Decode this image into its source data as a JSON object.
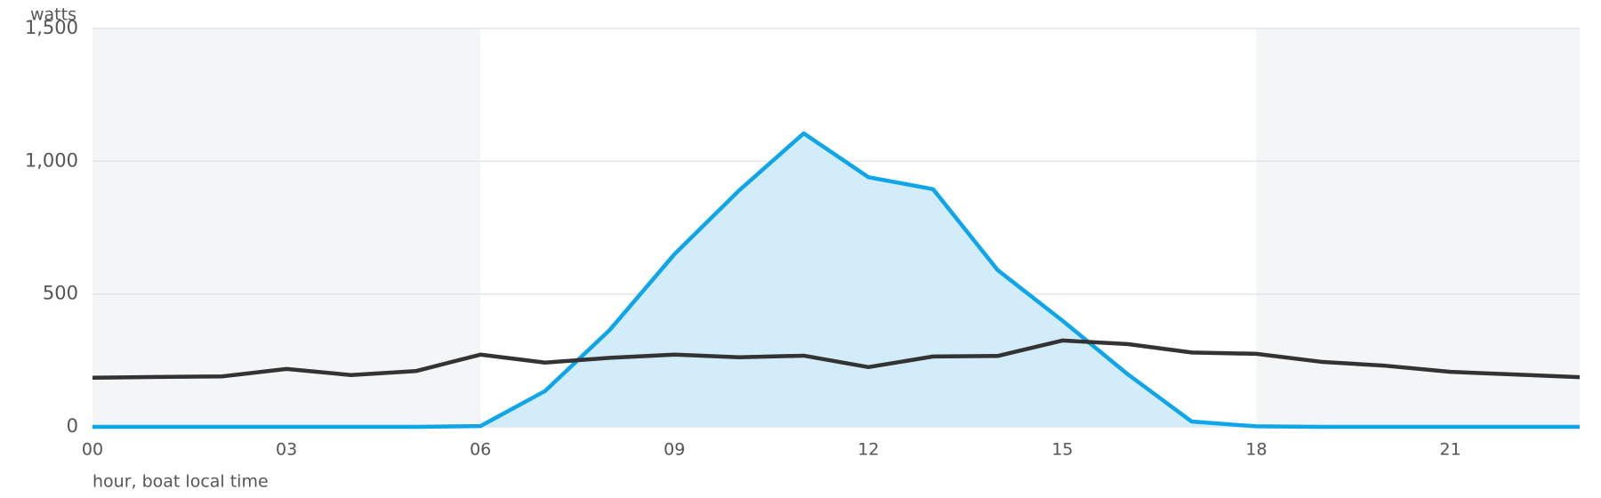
{
  "chart_data": {
    "type": "line",
    "ylabel": "watts",
    "xlabel": "hour, boat local time",
    "x": [
      0,
      1,
      2,
      3,
      4,
      5,
      6,
      7,
      8,
      9,
      10,
      11,
      12,
      13,
      14,
      15,
      16,
      17,
      18,
      19,
      20,
      21,
      22,
      23
    ],
    "series": [
      {
        "color": "#0ea5e9",
        "fill": "#d2edf9",
        "area": true,
        "values": [
          0,
          0,
          0,
          0,
          0,
          0,
          3,
          135,
          365,
          650,
          890,
          1105,
          940,
          895,
          590,
          400,
          200,
          20,
          2,
          0,
          0,
          0,
          0,
          0
        ]
      },
      {
        "color": "#333333",
        "area": false,
        "values": [
          185,
          188,
          190,
          218,
          195,
          210,
          272,
          242,
          260,
          272,
          262,
          268,
          225,
          265,
          267,
          325,
          312,
          280,
          275,
          245,
          230,
          207,
          197,
          187
        ]
      }
    ],
    "shaded_ranges": [
      [
        0,
        6
      ],
      [
        18,
        23
      ]
    ],
    "shade_color": "#f4f5f7",
    "xlim": [
      0,
      23
    ],
    "xticks": [
      {
        "value": 0,
        "label": "00"
      },
      {
        "value": 3,
        "label": "03"
      },
      {
        "value": 6,
        "label": "06"
      },
      {
        "value": 9,
        "label": "09"
      },
      {
        "value": 12,
        "label": "12"
      },
      {
        "value": 15,
        "label": "15"
      },
      {
        "value": 18,
        "label": "18"
      },
      {
        "value": 21,
        "label": "21"
      }
    ],
    "ylim": [
      0,
      1500
    ],
    "yticks": [
      0,
      500,
      {
        "value": 1000,
        "label": "1,000"
      },
      {
        "value": 1500,
        "label": "1,500"
      }
    ],
    "grid": true
  }
}
